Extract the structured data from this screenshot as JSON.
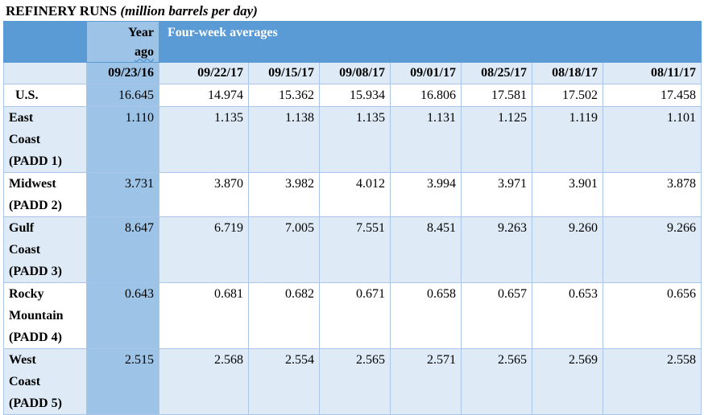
{
  "title": {
    "main": "REFINERY RUNS",
    "unit": "(million barrels per day)"
  },
  "header": {
    "year_ago_line1": "Year",
    "year_ago_line2": "ago",
    "four_week": "Four-week averages",
    "dates": [
      "09/23/16",
      "09/22/17",
      "09/15/17",
      "09/08/17",
      "09/01/17",
      "08/25/17",
      "08/18/17",
      "08/11/17"
    ]
  },
  "rows": [
    {
      "label_lines": [
        "U.S."
      ],
      "values": [
        "16.645",
        "14.974",
        "15.362",
        "15.934",
        "16.806",
        "17.581",
        "17.502",
        "17.458"
      ]
    },
    {
      "label_lines": [
        "East",
        "Coast",
        "(PADD 1)"
      ],
      "values": [
        "1.110",
        "1.135",
        "1.138",
        "1.135",
        "1.131",
        "1.125",
        "1.119",
        "1.101"
      ]
    },
    {
      "label_lines": [
        "Midwest",
        "(PADD 2)"
      ],
      "values": [
        "3.731",
        "3.870",
        "3.982",
        "4.012",
        "3.994",
        "3.971",
        "3.901",
        "3.878"
      ]
    },
    {
      "label_lines": [
        "Gulf",
        "Coast",
        "(PADD 3)"
      ],
      "values": [
        "8.647",
        "6.719",
        "7.005",
        "7.551",
        "8.451",
        "9.263",
        "9.260",
        "9.266"
      ]
    },
    {
      "label_lines": [
        "Rocky",
        "Mountain",
        "(PADD 4)"
      ],
      "values": [
        "0.643",
        "0.681",
        "0.682",
        "0.671",
        "0.658",
        "0.657",
        "0.653",
        "0.656"
      ]
    },
    {
      "label_lines": [
        "West",
        "Coast",
        "(PADD 5)"
      ],
      "values": [
        "2.515",
        "2.568",
        "2.554",
        "2.565",
        "2.571",
        "2.565",
        "2.569",
        "2.558"
      ]
    }
  ],
  "colors": {
    "header_blue": "#5b9bd5",
    "year_ago_blue": "#9dc3e6",
    "band_light": "#deeaf6"
  }
}
